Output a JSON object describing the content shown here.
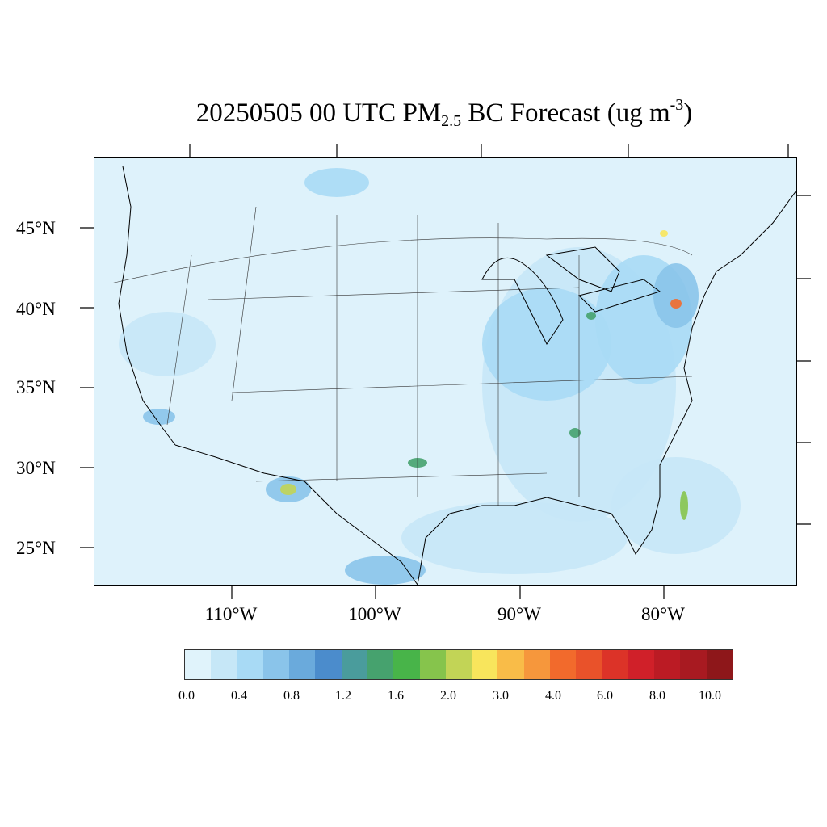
{
  "title": {
    "prefix": "20250505 00 UTC PM",
    "subscript": "2.5",
    "middle": " BC Forecast (ug m",
    "superscript": "-3",
    "suffix": ")"
  },
  "axes": {
    "lat_labels": [
      "45°N",
      "40°N",
      "35°N",
      "30°N",
      "25°N"
    ],
    "lon_labels": [
      "110°W",
      "100°W",
      "90°W",
      "80°W"
    ]
  },
  "colorbar": {
    "colors": [
      "#e0f3fb",
      "#c6e7f7",
      "#a8daf5",
      "#8ac4ea",
      "#6aaadc",
      "#4b8ccc",
      "#4a9c9c",
      "#46a26e",
      "#48b449",
      "#86c44c",
      "#c2d456",
      "#f8e55c",
      "#f9bc48",
      "#f6973c",
      "#f26a2c",
      "#e9522a",
      "#dc3328",
      "#d02029",
      "#bb1b24",
      "#a81a21",
      "#8e171a"
    ],
    "labels": [
      "0.0",
      "0.4",
      "0.8",
      "1.2",
      "1.6",
      "2.0",
      "3.0",
      "4.0",
      "6.0",
      "8.0",
      "10.0"
    ]
  },
  "map": {
    "background_color": "#def2fb",
    "hotspots": [
      {
        "name": "new-york-hotspot",
        "color": "#f26a2c"
      },
      {
        "name": "el-paso-hotspot",
        "color": "#c2d456"
      }
    ]
  }
}
